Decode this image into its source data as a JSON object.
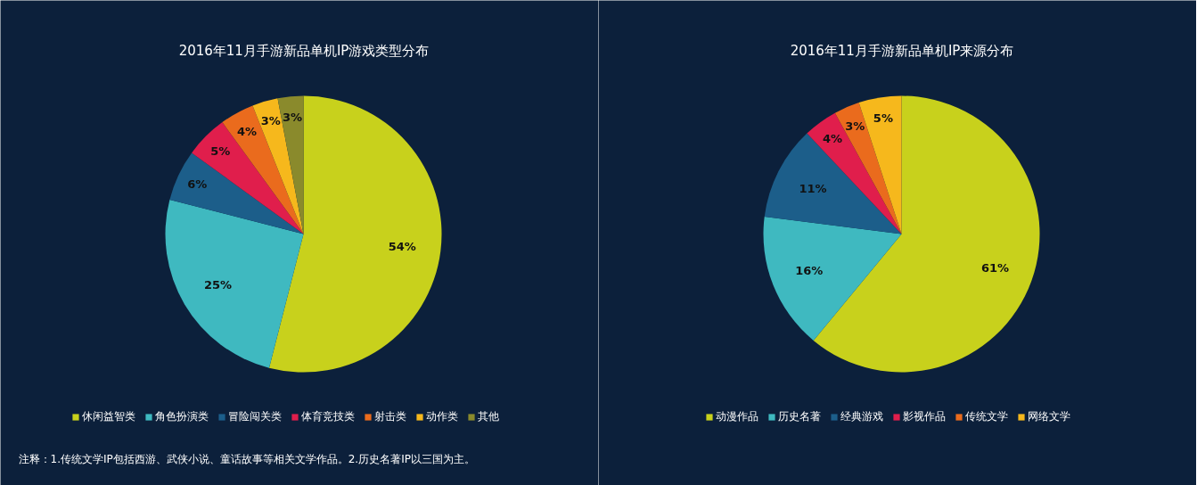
{
  "chart_data": [
    {
      "type": "pie",
      "title": "2016年11月手游新品单机IP游戏类型分布",
      "categories": [
        "休闲益智类",
        "角色扮演类",
        "冒险闯关类",
        "体育竞技类",
        "射击类",
        "动作类",
        "其他"
      ],
      "values": [
        54,
        25,
        6,
        5,
        4,
        3,
        3
      ],
      "value_labels": [
        "54%",
        "25%",
        "6%",
        "5%",
        "4%",
        "3%",
        "3%"
      ],
      "colors": [
        "#c8d11c",
        "#3fb9c0",
        "#1c5e8a",
        "#e01e4c",
        "#ea6b1d",
        "#f6b81c",
        "#8a8a2c"
      ],
      "legend": "bottom",
      "annotations": [
        "注释：1.传统文学IP包括西游、武侠小说、童话故事等相关文学作品。2.历史名著IP以三国为主。"
      ]
    },
    {
      "type": "pie",
      "title": "2016年11月手游新品单机IP来源分布",
      "categories": [
        "动漫作品",
        "历史名著",
        "经典游戏",
        "影视作品",
        "传统文学",
        "网络文学"
      ],
      "values": [
        61,
        16,
        11,
        4,
        3,
        5
      ],
      "value_labels": [
        "61%",
        "16%",
        "11%",
        "4%",
        "3%",
        "5%"
      ],
      "colors": [
        "#c8d11c",
        "#3fb9c0",
        "#1c5e8a",
        "#e01e4c",
        "#ea6b1d",
        "#f6b81c"
      ],
      "legend": "bottom"
    }
  ]
}
